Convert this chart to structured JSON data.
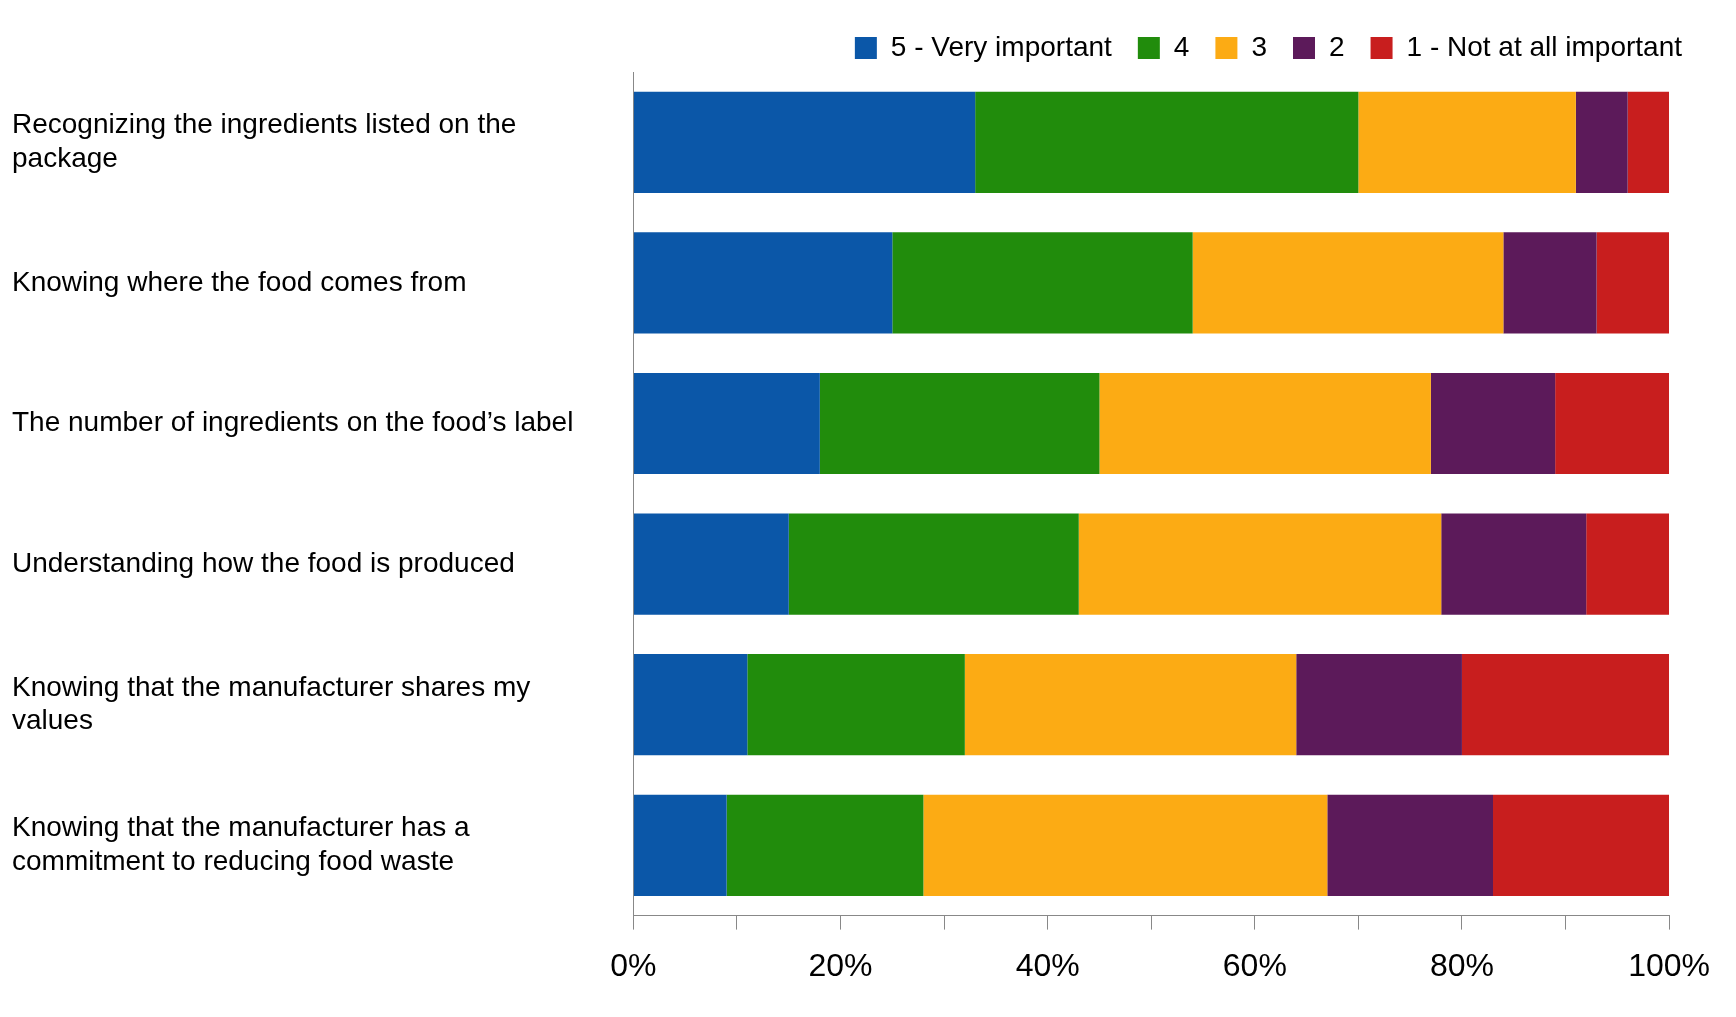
{
  "chart_data": {
    "type": "bar",
    "orientation": "horizontal",
    "stacked": true,
    "legend": "top right",
    "grid": false,
    "categories": [
      "Recognizing the ingredients listed on the package",
      "Knowing where the food comes from",
      "The number of ingredients on the food’s label",
      "Understanding how the food is produced",
      "Knowing that the manufacturer shares my values",
      "Knowing that the manufacturer has a commitment to reducing food waste"
    ],
    "series": [
      {
        "name": "5 - Very important",
        "color": "#0b57a8",
        "values": [
          33,
          25,
          18,
          15,
          11,
          9
        ]
      },
      {
        "name": "4",
        "color": "#218c0c",
        "values": [
          37,
          29,
          27,
          28,
          21,
          19
        ]
      },
      {
        "name": "3",
        "color": "#fcab14",
        "values": [
          21,
          30,
          32,
          35,
          32,
          39
        ]
      },
      {
        "name": "2",
        "color": "#5c1a5a",
        "values": [
          5,
          9,
          12,
          14,
          16,
          16
        ]
      },
      {
        "name": "1 - Not at all important",
        "color": "#c81e1e",
        "values": [
          4,
          7,
          11,
          8,
          20,
          17
        ]
      }
    ],
    "xlim": [
      0,
      100
    ],
    "xticks": [
      {
        "value": 0,
        "label": "0%"
      },
      {
        "value": 10,
        "label": null
      },
      {
        "value": 20,
        "label": "20%"
      },
      {
        "value": 30,
        "label": null
      },
      {
        "value": 40,
        "label": "40%"
      },
      {
        "value": 50,
        "label": null
      },
      {
        "value": 60,
        "label": "60%"
      },
      {
        "value": 70,
        "label": null
      },
      {
        "value": 80,
        "label": "80%"
      },
      {
        "value": 90,
        "label": null
      },
      {
        "value": 100,
        "label": "100%"
      }
    ]
  }
}
